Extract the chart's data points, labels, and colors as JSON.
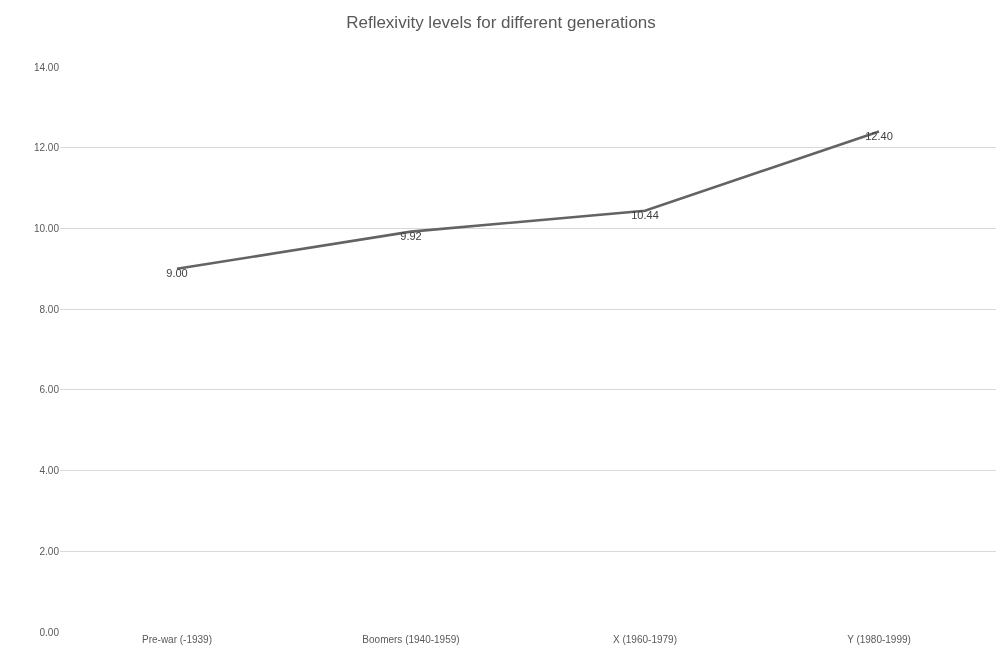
{
  "chart_data": {
    "type": "line",
    "title": "Reflexivity levels for different generations",
    "categories": [
      "Pre-war (-1939)",
      "Boomers (1940-1959)",
      "X (1960-1979)",
      "Y (1980-1999)"
    ],
    "series": [
      {
        "color": "#636363",
        "values": [
          9.0,
          9.92,
          10.44,
          12.4
        ],
        "value_labels": [
          "9.00",
          "9.92",
          "10.44",
          "12.40"
        ]
      }
    ],
    "ylim": [
      0,
      14
    ],
    "yticks": [
      {
        "value": 0,
        "label": "0.00"
      },
      {
        "value": 2,
        "label": "2.00"
      },
      {
        "value": 4,
        "label": "4.00"
      },
      {
        "value": 6,
        "label": "6.00"
      },
      {
        "value": 8,
        "label": "8.00"
      },
      {
        "value": 10,
        "label": "10.00"
      },
      {
        "value": 12,
        "label": "12.00"
      },
      {
        "value": 14,
        "label": "14.00"
      }
    ],
    "grid": "y",
    "marker": "none",
    "line_style": "solid"
  }
}
